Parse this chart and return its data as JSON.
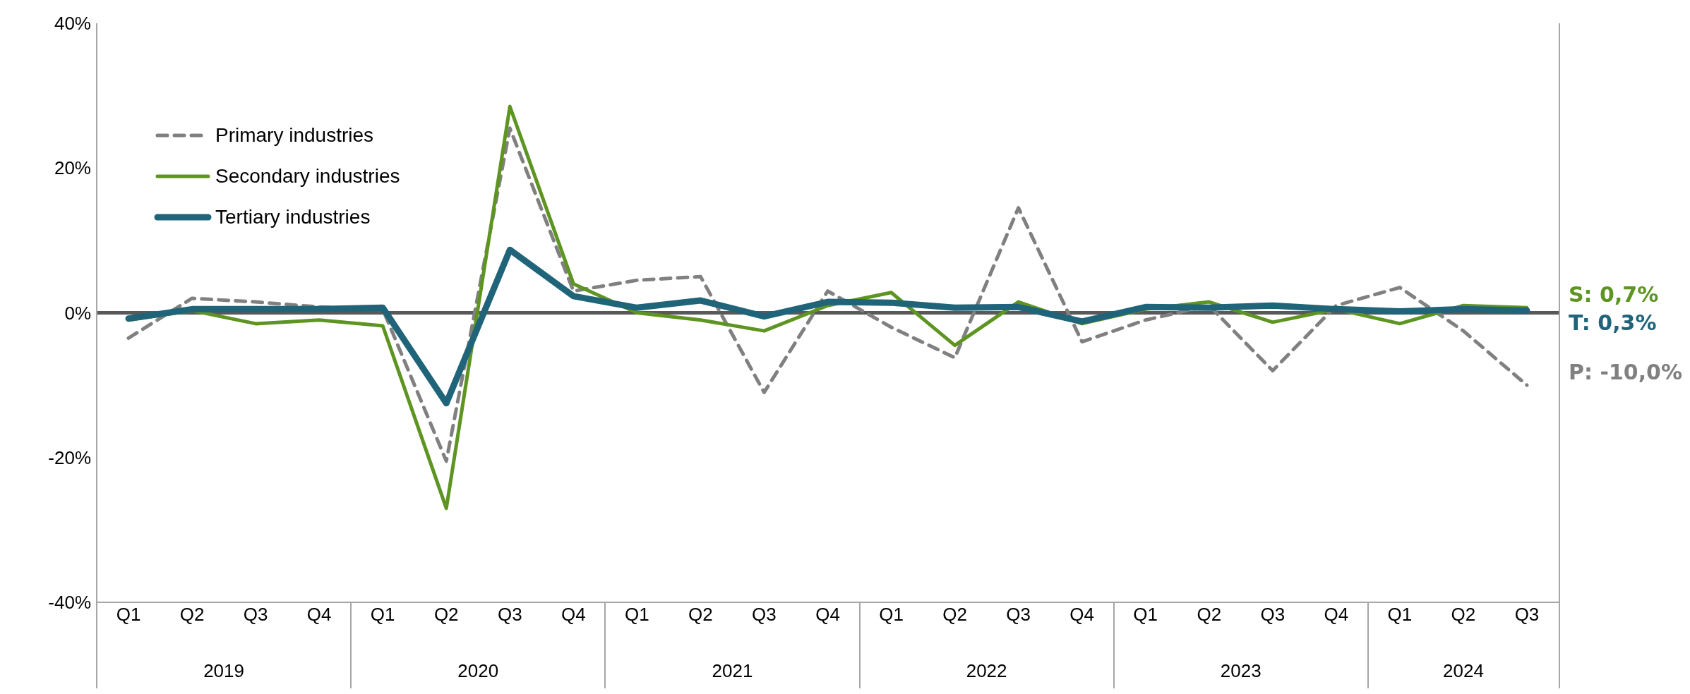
{
  "chart_data": {
    "type": "line",
    "categories": [
      "Q1",
      "Q2",
      "Q3",
      "Q4",
      "Q1",
      "Q2",
      "Q3",
      "Q4",
      "Q1",
      "Q2",
      "Q3",
      "Q4",
      "Q1",
      "Q2",
      "Q3",
      "Q4",
      "Q1",
      "Q2",
      "Q3",
      "Q4",
      "Q1",
      "Q2",
      "Q3"
    ],
    "series": [
      {
        "name": "Primary industries",
        "color": "#808080",
        "line_style": "dashed",
        "values": [
          -3.5,
          2,
          1.5,
          0.8,
          0.5,
          -20.5,
          25.5,
          3,
          4.5,
          5,
          -11,
          3,
          -2,
          -6.2,
          14.5,
          -4,
          -1,
          1,
          -8,
          1,
          3.5,
          -2.5,
          -10
        ]
      },
      {
        "name": "Secondary industries",
        "color": "#5e9421",
        "line_style": "solid",
        "values": [
          -1,
          0.3,
          -1.5,
          -1,
          -1.8,
          -27,
          28.5,
          4,
          0,
          -1,
          -2.5,
          1,
          2.8,
          -4.5,
          1.5,
          -1.5,
          0.5,
          1.5,
          -1.3,
          0.5,
          -1.5,
          1,
          0.7
        ]
      },
      {
        "name": "Tertiary industries",
        "color": "#1f6479",
        "line_style": "solid",
        "values": [
          -0.8,
          0.5,
          0.5,
          0.5,
          0.7,
          -12.5,
          8.7,
          2.3,
          0.7,
          1.7,
          -0.5,
          1.5,
          1.4,
          0.7,
          0.8,
          -1.2,
          0.8,
          0.7,
          1,
          0.5,
          0.2,
          0.5,
          0.3
        ]
      }
    ],
    "ylim": [
      -40,
      40
    ],
    "yticks": [
      {
        "value": -40,
        "label": "-40%"
      },
      {
        "value": -20,
        "label": "-20%"
      },
      {
        "value": 0,
        "label": "0%"
      },
      {
        "value": 20,
        "label": "20%"
      },
      {
        "value": 40,
        "label": "40%"
      }
    ],
    "ref_lines": [
      {
        "axis": "y",
        "value": 0,
        "label": null,
        "color": "#595959"
      }
    ],
    "annotations": [
      "P: -10,0%",
      "S: 0,7%",
      "T: 0,3%",
      "2019",
      "2020",
      "2021",
      "2022",
      "2023",
      "2024"
    ],
    "legend": "top left",
    "grid": false,
    "marker": "none"
  }
}
